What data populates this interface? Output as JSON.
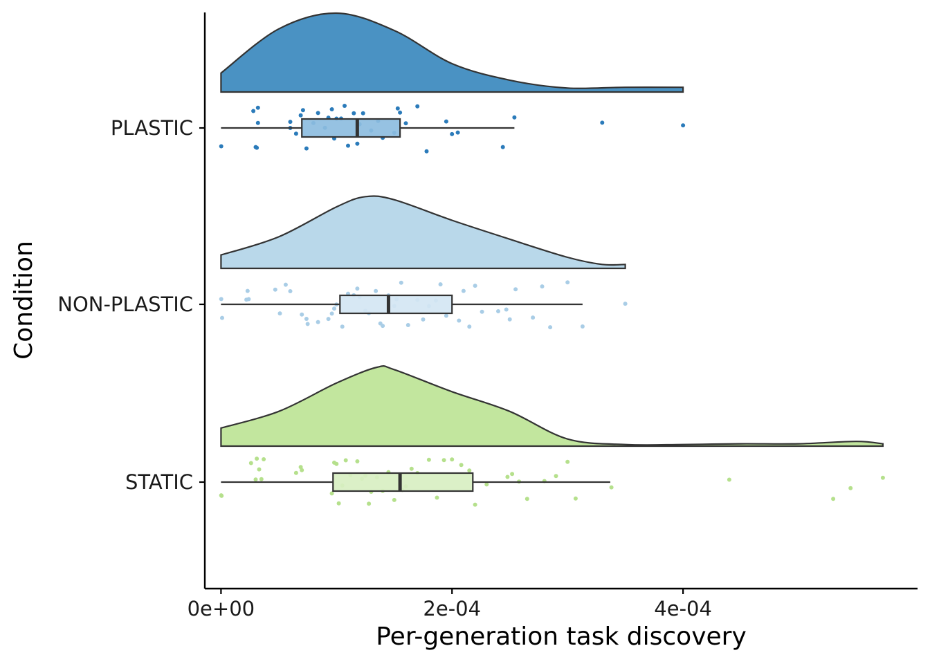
{
  "chart_data": {
    "type": "raincloud",
    "title": "",
    "xlabel": "Per-generation task discovery",
    "ylabel": "Condition",
    "xlim": [
      -1.4e-05,
      0.000603
    ],
    "x_ticks": [
      {
        "value": 0,
        "label": "0e+00"
      },
      {
        "value": 0.0002,
        "label": "2e-04"
      },
      {
        "value": 0.0004,
        "label": "4e-04"
      }
    ],
    "grid": false,
    "legend": "none",
    "categories": [
      "PLASTIC",
      "NON-PLASTIC",
      "STATIC"
    ],
    "series": [
      {
        "name": "PLASTIC",
        "color": "#4a92c3",
        "box_fill": "#8dbde0",
        "point_color": "#2b7bba",
        "box": {
          "min": 0.0,
          "q1": 7e-05,
          "median": 0.000118,
          "q3": 0.000155,
          "max": 0.000254
        },
        "density": {
          "x": [
            0.0,
            5e-05,
            0.0001,
            0.00015,
            0.0002,
            0.00025,
            0.0003,
            0.00035,
            0.0004
          ],
          "y": [
            0.24,
            0.8,
            1.0,
            0.78,
            0.36,
            0.15,
            0.05,
            0.06,
            0.06
          ]
        },
        "points": [
          2e-07,
          3.1e-05,
          3.2e-05,
          3.2e-05,
          3e-05,
          2.8e-05,
          6e-05,
          6e-05,
          6.5e-05,
          6.9e-05,
          7.1e-05,
          7.4e-05,
          8e-05,
          8.4e-05,
          9e-05,
          9.3e-05,
          9.6e-05,
          9.8e-05,
          0.0001,
          0.000104,
          0.000107,
          0.00011,
          0.000115,
          0.000118,
          0.00012,
          0.000123,
          0.00013,
          0.000136,
          0.00014,
          0.00015,
          0.000153,
          0.000155,
          0.00016,
          0.00017,
          0.000178,
          0.000195,
          0.0002,
          0.000205,
          0.000244,
          0.000254,
          0.00033,
          0.0004
        ]
      },
      {
        "name": "NON-PLASTIC",
        "color": "#b9d8ea",
        "box_fill": "#d4e6f3",
        "point_color": "#a9cde6",
        "box": {
          "min": 0.0,
          "q1": 0.000103,
          "median": 0.000145,
          "q3": 0.0002,
          "max": 0.000313
        },
        "density": {
          "x": [
            0.0,
            5e-05,
            0.0001,
            0.000125,
            0.00015,
            0.0002,
            0.00025,
            0.0003,
            0.00033,
            0.00035
          ],
          "y": [
            0.17,
            0.4,
            0.78,
            0.91,
            0.87,
            0.61,
            0.37,
            0.14,
            0.05,
            0.05
          ]
        },
        "points": [
          2e-07,
          1e-06,
          2.2e-05,
          2.4e-05,
          2.3e-05,
          4.7e-05,
          5.1e-05,
          5.6e-05,
          6e-05,
          7e-05,
          7.4e-05,
          7.5e-05,
          8.4e-05,
          9.3e-05,
          9.6e-05,
          9.8e-05,
          0.0001,
          0.000105,
          0.00011,
          0.000115,
          0.000118,
          0.00012,
          0.000125,
          0.000128,
          0.000134,
          0.000138,
          0.00014,
          0.000145,
          0.00015,
          0.000152,
          0.000156,
          0.000162,
          0.00017,
          0.000175,
          0.00018,
          0.000186,
          0.00019,
          0.000195,
          0.000206,
          0.00021,
          0.000215,
          0.00022,
          0.000226,
          0.00024,
          0.000247,
          0.00025,
          0.000255,
          0.00027,
          0.000278,
          0.000285,
          0.0003,
          0.000313,
          0.00035
        ]
      },
      {
        "name": "STATIC",
        "color": "#c2e69e",
        "box_fill": "#d8efc2",
        "point_color": "#b5e08c",
        "box": {
          "min": 0.0,
          "q1": 9.7e-05,
          "median": 0.000155,
          "q3": 0.000218,
          "max": 0.000337
        },
        "density": {
          "x": [
            0.0,
            5e-05,
            0.0001,
            0.000135,
            0.00015,
            0.0002,
            0.00025,
            0.0003,
            0.00035,
            0.0004,
            0.00045,
            0.0005,
            0.00055,
            0.000573
          ],
          "y": [
            0.23,
            0.44,
            0.8,
            1.0,
            0.97,
            0.69,
            0.44,
            0.09,
            0.02,
            0.02,
            0.03,
            0.03,
            0.06,
            0.03
          ]
        },
        "points": [
          2e-07,
          5e-07,
          2.6e-05,
          3e-05,
          3.1e-05,
          3.3e-05,
          3.5e-05,
          3.7e-05,
          6.5e-05,
          6.9e-05,
          7e-05,
          9.6e-05,
          9.8e-05,
          0.0001,
          0.000102,
          0.000105,
          0.000108,
          0.000112,
          0.000118,
          0.000122,
          0.000125,
          0.000128,
          0.00013,
          0.000135,
          0.00014,
          0.000145,
          0.00015,
          0.000157,
          0.00016,
          0.000165,
          0.00017,
          0.00018,
          0.000187,
          0.000193,
          0.0002,
          0.000208,
          0.000215,
          0.00022,
          0.00023,
          0.000248,
          0.000252,
          0.000258,
          0.000265,
          0.00028,
          0.00029,
          0.0003,
          0.000307,
          0.000338,
          0.00044,
          0.00053,
          0.000545,
          0.000573
        ]
      }
    ]
  }
}
